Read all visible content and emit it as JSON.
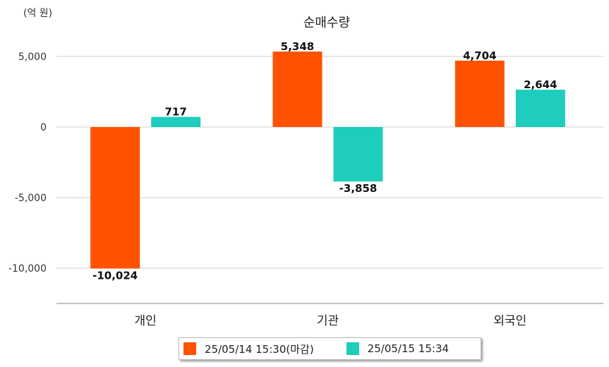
{
  "unit_label": "(억 원)",
  "chart_data": {
    "type": "bar",
    "title": "순매수량",
    "ylabel": "(억 원)",
    "categories": [
      "개인",
      "기관",
      "외국인"
    ],
    "series": [
      {
        "name": "25/05/14 15:30(마감)",
        "color": "#ff5200",
        "values": [
          -10024,
          5348,
          4704
        ],
        "labels": [
          "-10,024",
          "5,348",
          "4,704"
        ]
      },
      {
        "name": "25/05/15 15:34",
        "color": "#1ecdbb",
        "values": [
          717,
          -3858,
          2644
        ],
        "labels": [
          "717",
          "-3,858",
          "2,644"
        ]
      }
    ],
    "ylim": [
      -12500,
      7500
    ],
    "yticks": [
      5000,
      0,
      -5000,
      -10000
    ],
    "ytick_labels": [
      "5,000",
      "0",
      "-5,000",
      "-10,000"
    ],
    "grid": true,
    "legend": "bottom"
  }
}
